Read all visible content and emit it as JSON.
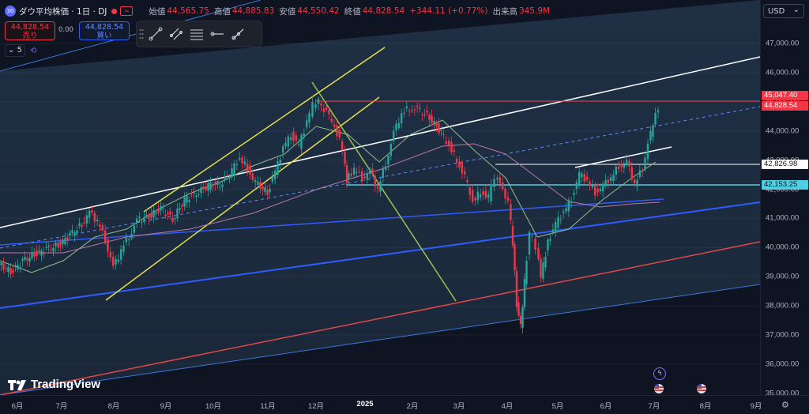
{
  "header": {
    "symbol_logo": "30",
    "symbol": "ダウ平均株価 · 1日 · DJ",
    "alert_icon": "alert-icon",
    "open_label": "始値",
    "open": "44,565.75",
    "high_label": "高値",
    "high": "44,885.83",
    "low_label": "安値",
    "low": "44,550.42",
    "close_label": "終値",
    "close": "44,828.54",
    "change": "+344.11 (+0.77%)",
    "volume_label": "出来高",
    "volume": "345.9M"
  },
  "trade": {
    "sell_price": "44,828.54",
    "sell_label": "売り",
    "spread": "0.00",
    "buy_price": "44,828.54",
    "buy_label": "買い"
  },
  "controls": {
    "count": "5"
  },
  "currency": "USD",
  "y_axis": {
    "ticks": [
      "47,000.00",
      "46,000.00",
      "45,000.00",
      "44,000.00",
      "43,000.00",
      "42,000.00",
      "41,000.00",
      "40,000.00",
      "39,000.00",
      "38,000.00",
      "37,000.00",
      "36,000.00",
      "35,000.00"
    ]
  },
  "price_labels": [
    {
      "text": "45,047.40",
      "bg": "#f23645",
      "fg": "#ffffff"
    },
    {
      "text": "44,828.54",
      "bg": "#f23645",
      "fg": "#ffffff"
    },
    {
      "text": "42,826.98",
      "bg": "#ffffff",
      "fg": "#131722"
    },
    {
      "text": "42,153.25",
      "bg": "#4dd0e1",
      "fg": "#131722"
    }
  ],
  "x_axis": {
    "ticks": [
      "6月",
      "7月",
      "8月",
      "9月",
      "10月",
      "11月",
      "12月",
      "2025",
      "2月",
      "3月",
      "4月",
      "5月",
      "6月",
      "7月",
      "8月",
      "9月"
    ]
  },
  "brand": "TradingView",
  "colors": {
    "up": "#26a69a",
    "down": "#f23645",
    "bg": "#1b2838"
  },
  "chart_data": {
    "type": "candlestick",
    "ylim": [
      35000,
      47500
    ],
    "annotations": [
      "45,047.40",
      "44,828.54",
      "42,826.98",
      "42,153.25"
    ]
  }
}
